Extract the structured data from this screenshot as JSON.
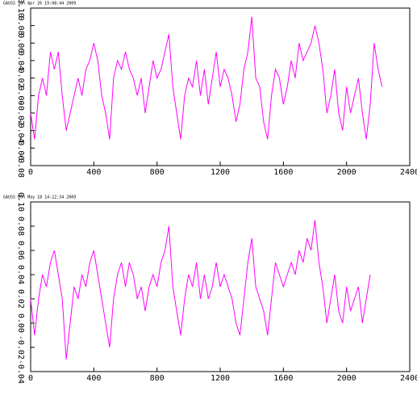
{
  "chart_data": [
    {
      "type": "line",
      "title": "GAUSS   Sun Apr 26 19:08:44 2009",
      "color": "#ff00ff",
      "x": [
        0,
        25,
        50,
        75,
        100,
        125,
        150,
        175,
        200,
        225,
        250,
        275,
        300,
        325,
        350,
        375,
        400,
        425,
        450,
        475,
        500,
        525,
        550,
        575,
        600,
        625,
        650,
        675,
        700,
        725,
        750,
        775,
        800,
        825,
        850,
        875,
        900,
        925,
        950,
        975,
        1000,
        1025,
        1050,
        1075,
        1100,
        1125,
        1150,
        1175,
        1200,
        1225,
        1250,
        1275,
        1300,
        1325,
        1350,
        1375,
        1400,
        1425,
        1450,
        1475,
        1500,
        1525,
        1550,
        1575,
        1600,
        1625,
        1650,
        1675,
        1700,
        1725,
        1750,
        1775,
        1800,
        1825,
        1850,
        1875,
        1900,
        1925,
        1950,
        1975,
        2000,
        2025,
        2050,
        2075,
        2100,
        2125,
        2150,
        2175,
        2200,
        2225
      ],
      "values": [
        -0.02,
        -0.05,
        0.0,
        0.02,
        0.0,
        0.05,
        0.03,
        0.05,
        0.0,
        -0.04,
        -0.02,
        0.0,
        0.02,
        0.0,
        0.03,
        0.04,
        0.06,
        0.04,
        0.0,
        -0.02,
        -0.05,
        0.02,
        0.04,
        0.03,
        0.05,
        0.03,
        0.02,
        0.0,
        0.02,
        -0.02,
        0.01,
        0.04,
        0.02,
        0.03,
        0.05,
        0.07,
        0.01,
        -0.02,
        -0.05,
        0.0,
        0.02,
        0.01,
        0.04,
        0.0,
        0.03,
        -0.01,
        0.02,
        0.05,
        0.01,
        0.03,
        0.02,
        0.0,
        -0.03,
        -0.01,
        0.03,
        0.05,
        0.09,
        0.02,
        0.01,
        -0.03,
        -0.05,
        0.0,
        0.03,
        0.02,
        -0.01,
        0.01,
        0.04,
        0.02,
        0.06,
        0.04,
        0.05,
        0.06,
        0.08,
        0.06,
        0.03,
        -0.02,
        0.0,
        0.03,
        -0.02,
        -0.04,
        0.01,
        -0.02,
        0.0,
        0.02,
        -0.02,
        -0.05,
        -0.01,
        0.06,
        0.03,
        0.01
      ],
      "xlim": [
        0,
        2400
      ],
      "xticks": [
        0,
        400,
        800,
        1200,
        1600,
        2000,
        2400
      ],
      "ylim": [
        -0.08,
        0.1
      ],
      "yticks": [
        -0.08,
        -0.06,
        -0.04,
        -0.02,
        {
          "value": 0,
          "label": "0.00"
        },
        0.02,
        0.04,
        0.06,
        0.08,
        {
          "value": 0.1,
          "label": "0.10"
        }
      ]
    },
    {
      "type": "line",
      "title": "GAUSS   Mon May 18 14:22:34 2009",
      "color": "#ff00ff",
      "x": [
        0,
        25,
        50,
        75,
        100,
        125,
        150,
        175,
        200,
        225,
        250,
        275,
        300,
        325,
        350,
        375,
        400,
        425,
        450,
        475,
        500,
        525,
        550,
        575,
        600,
        625,
        650,
        675,
        700,
        725,
        750,
        775,
        800,
        825,
        850,
        875,
        900,
        925,
        950,
        975,
        1000,
        1025,
        1050,
        1075,
        1100,
        1125,
        1150,
        1175,
        1200,
        1225,
        1250,
        1275,
        1300,
        1325,
        1350,
        1375,
        1400,
        1425,
        1450,
        1475,
        1500,
        1525,
        1550,
        1575,
        1600,
        1625,
        1650,
        1675,
        1700,
        1725,
        1750,
        1775,
        1800,
        1825,
        1850,
        1875,
        1900,
        1925,
        1950,
        1975,
        2000,
        2025,
        2050,
        2075,
        2100,
        2125,
        2150
      ],
      "values": [
        0.02,
        -0.01,
        0.02,
        0.04,
        0.03,
        0.05,
        0.06,
        0.04,
        0.02,
        -0.03,
        0.0,
        0.03,
        0.02,
        0.04,
        0.03,
        0.05,
        0.06,
        0.04,
        0.02,
        0.0,
        -0.02,
        0.02,
        0.04,
        0.05,
        0.03,
        0.05,
        0.04,
        0.02,
        0.03,
        0.01,
        0.03,
        0.04,
        0.03,
        0.05,
        0.06,
        0.08,
        0.03,
        0.01,
        -0.01,
        0.02,
        0.04,
        0.03,
        0.05,
        0.02,
        0.04,
        0.02,
        0.03,
        0.05,
        0.03,
        0.04,
        0.03,
        0.02,
        0.0,
        -0.01,
        0.02,
        0.05,
        0.07,
        0.03,
        0.02,
        0.01,
        -0.01,
        0.02,
        0.05,
        0.04,
        0.03,
        0.04,
        0.05,
        0.04,
        0.06,
        0.05,
        0.07,
        0.06,
        0.085,
        0.05,
        0.03,
        0.0,
        0.02,
        0.04,
        0.01,
        0.0,
        0.03,
        0.01,
        0.02,
        0.03,
        0.0,
        0.02,
        0.04
      ],
      "xlim": [
        0,
        2400
      ],
      "xticks": [
        0,
        400,
        800,
        1200,
        1600,
        2000,
        2400
      ],
      "ylim": [
        -0.04,
        0.1
      ],
      "yticks": [
        -0.04,
        -0.02,
        {
          "value": 0,
          "label": "0.00"
        },
        0.02,
        0.04,
        0.06,
        0.08,
        {
          "value": 0.1,
          "label": "0.10"
        }
      ]
    }
  ]
}
